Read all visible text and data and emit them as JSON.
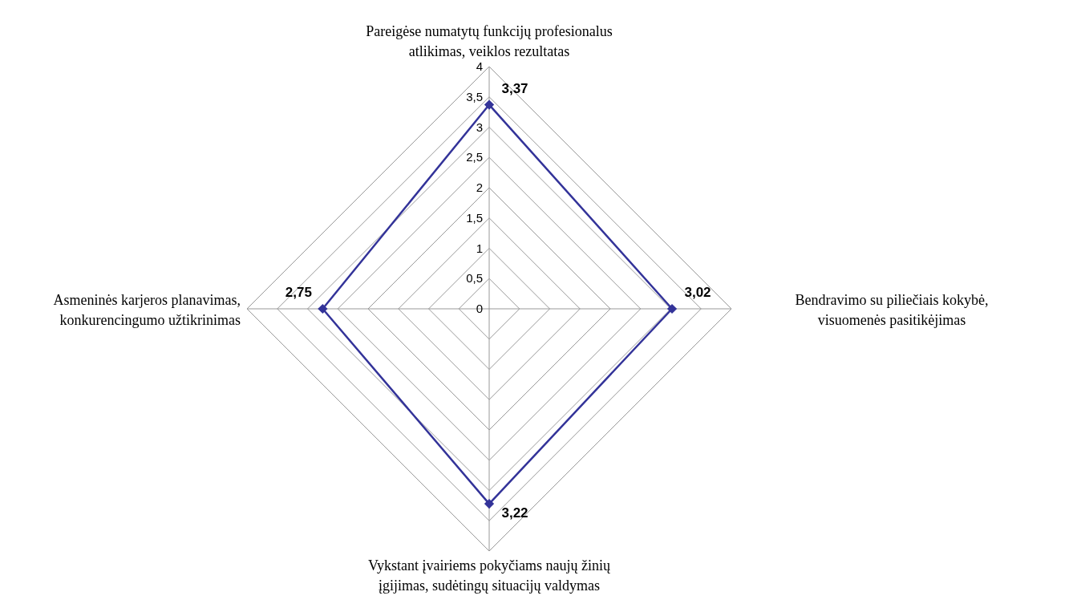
{
  "chart_data": {
    "type": "radar",
    "categories": [
      "Pareigėse numatytų funkcijų profesionalus atlikimas, veiklos rezultatas",
      "Bendravimo su piliečiais kokybė, visuomenės pasitikėjimas",
      "Vykstant įvairiems pokyčiams naujų žinių įgijimas, sudėtingų situacijų valdymas",
      "Asmeninės karjeros planavimas, konkurencingumo užtikrinimas"
    ],
    "series": [
      {
        "color": "#333399",
        "values": [
          3.37,
          3.02,
          3.22,
          2.75
        ],
        "value_labels": [
          "3,37",
          "3,02",
          "3,22",
          "2,75"
        ]
      }
    ],
    "ylim": [
      0,
      4
    ],
    "yticks": [
      0,
      {
        "value": 0.5,
        "label": "0,5"
      },
      1,
      {
        "value": 1.5,
        "label": "1,5"
      },
      2,
      {
        "value": 2.5,
        "label": "2,5"
      },
      3,
      {
        "value": 3.5,
        "label": "3,5"
      },
      4
    ],
    "grid": true,
    "marker": "diamond"
  }
}
